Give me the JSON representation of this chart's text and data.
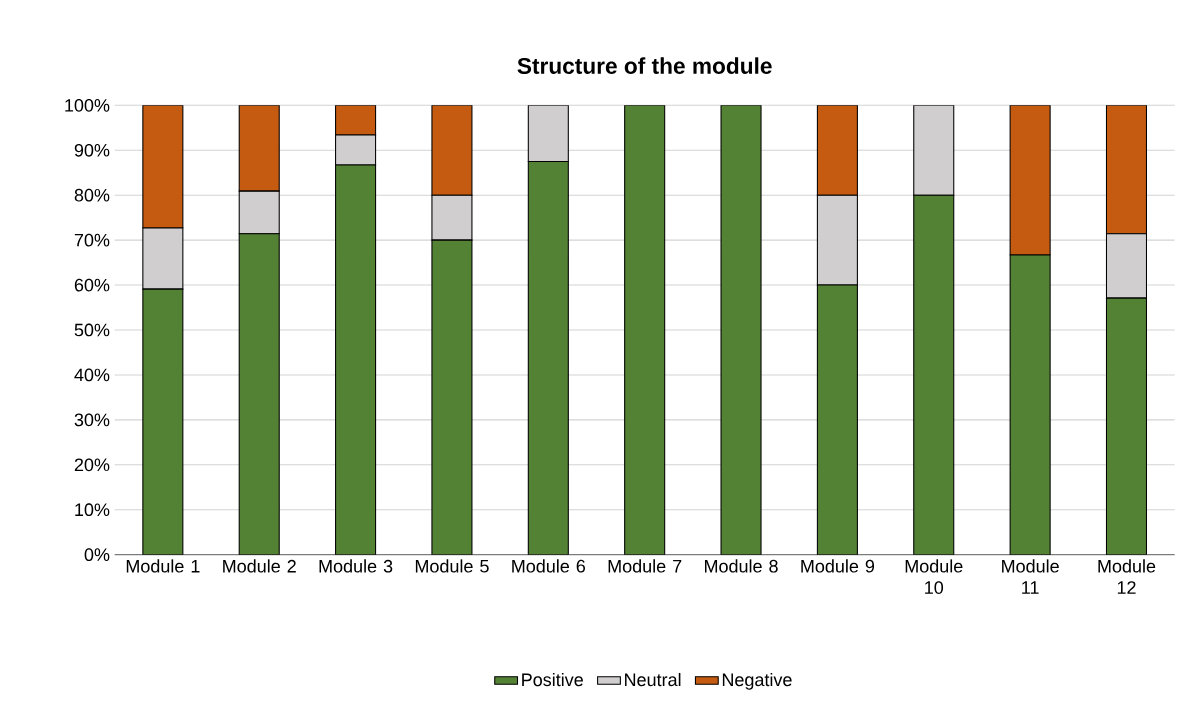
{
  "chart_data": {
    "type": "bar",
    "stacked": true,
    "title": "Structure of the module",
    "categories": [
      "Module 1",
      "Module 2",
      "Module 3",
      "Module 5",
      "Module 6",
      "Module 7",
      "Module 8",
      "Module 9",
      "Module 10",
      "Module 11",
      "Module 12"
    ],
    "series": [
      {
        "name": "Positive",
        "color": "#548235",
        "values": [
          59.1,
          71.4,
          86.7,
          70,
          87.5,
          100,
          100,
          60,
          80,
          66.7,
          57.1
        ]
      },
      {
        "name": "Neutral",
        "color": "#d0cece",
        "values": [
          13.6,
          9.5,
          6.7,
          10,
          12.5,
          0,
          0,
          20,
          20,
          0,
          14.3
        ]
      },
      {
        "name": "Negative",
        "color": "#c55a11",
        "values": [
          27.3,
          19.1,
          6.6,
          20,
          0,
          0,
          0,
          20,
          0,
          33.3,
          28.6
        ]
      }
    ],
    "ylim": [
      0,
      100
    ],
    "yticks": [
      {
        "value": 0,
        "label": "0%"
      },
      {
        "value": 10,
        "label": "10%"
      },
      {
        "value": 20,
        "label": "20%"
      },
      {
        "value": 30,
        "label": "30%"
      },
      {
        "value": 40,
        "label": "40%"
      },
      {
        "value": 50,
        "label": "50%"
      },
      {
        "value": 60,
        "label": "60%"
      },
      {
        "value": 70,
        "label": "70%"
      },
      {
        "value": 80,
        "label": "80%"
      },
      {
        "value": 90,
        "label": "90%"
      },
      {
        "value": 100,
        "label": "100%"
      }
    ],
    "grid": "y",
    "legend": "bottom"
  }
}
